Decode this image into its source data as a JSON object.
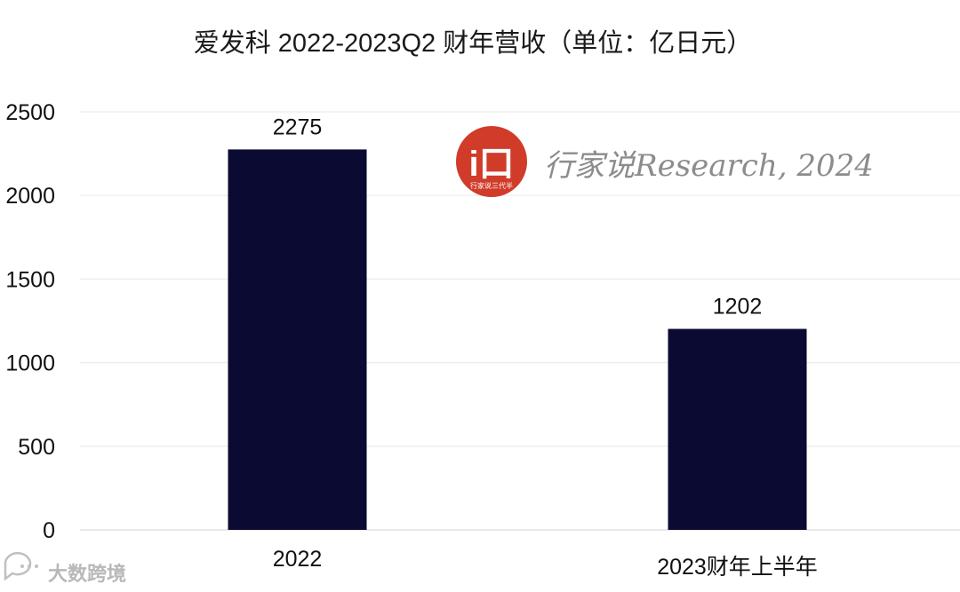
{
  "chart_data": {
    "type": "bar",
    "title": "爱发科 2022-2023Q2 财年营收（单位：亿日元）",
    "categories": [
      "2022",
      "2023财年上半年"
    ],
    "values": [
      2275,
      1202
    ],
    "value_labels": [
      "2275",
      "1202"
    ],
    "ylim": [
      0,
      2500
    ],
    "yticks": [
      0,
      500,
      1000,
      1500,
      2000,
      2500
    ],
    "grid": true,
    "bar_color": "#0b0a33"
  },
  "watermark": {
    "text": "行家说Research, 2024",
    "logo_color": "#d13b2a",
    "logo_glyph": "i口",
    "logo_caption": "行家说三代半"
  },
  "footer": {
    "text": "大数跨境",
    "icon": "chat-bubble-icon"
  }
}
